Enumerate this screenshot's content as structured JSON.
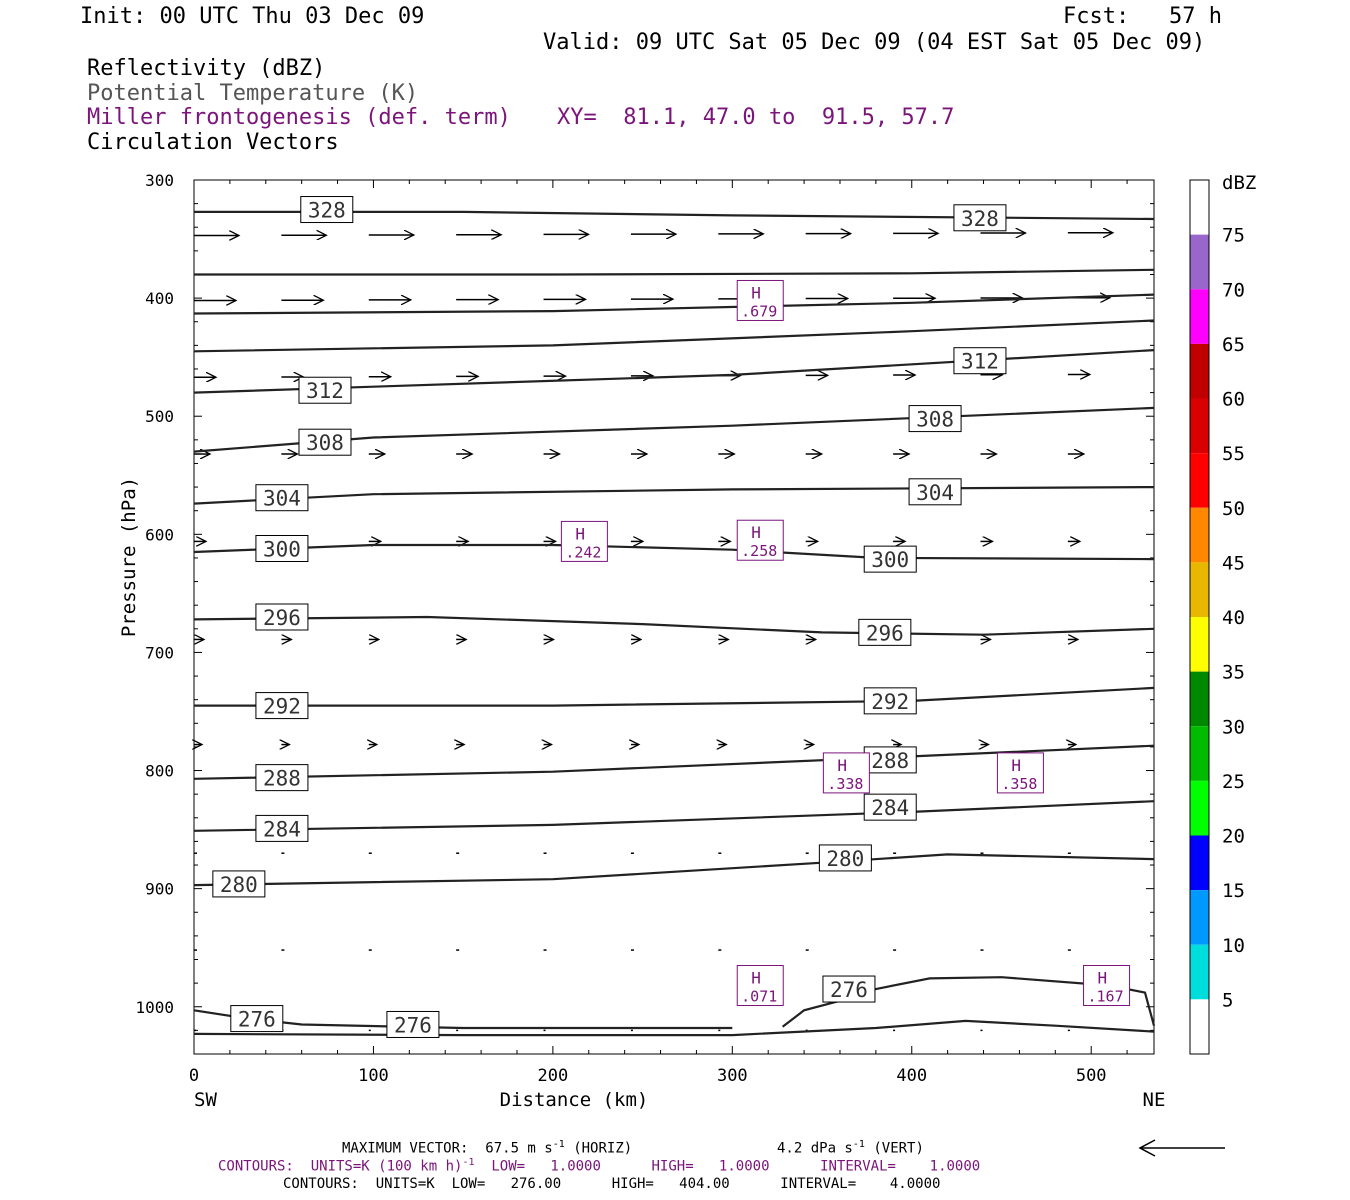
{
  "header": {
    "init": "Init: 00 UTC Thu 03 Dec 09",
    "fcst": "Fcst:   57 h",
    "valid": "Valid: 09 UTC Sat 05 Dec 09 (04 EST Sat 05 Dec 09)",
    "field1": "Reflectivity (dBZ)",
    "field2": "Potential Temperature (K)",
    "field3": "Miller frontogenesis (def. term)",
    "xy": "XY=  81.1, 47.0 to  91.5, 57.7",
    "field4": "Circulation Vectors"
  },
  "chart_data": {
    "type": "cross-section",
    "xlabel": "Distance (km)",
    "ylabel": "Pressure (hPa)",
    "xlim": [
      0,
      535
    ],
    "ylim": [
      1040,
      300
    ],
    "x_ticks": [
      "0",
      "100",
      "200",
      "300",
      "400",
      "500"
    ],
    "y_ticks": [
      "300",
      "400",
      "500",
      "600",
      "700",
      "800",
      "900",
      "1000"
    ],
    "x_end_labels": {
      "left": "SW",
      "right": "NE"
    },
    "colorbar": {
      "unit": "dBZ",
      "labels": [
        "75",
        "70",
        "65",
        "60",
        "55",
        "50",
        "45",
        "40",
        "35",
        "30",
        "25",
        "20",
        "15",
        "10",
        "5"
      ],
      "colors": [
        "#ffffff",
        "#9966cc",
        "#ff00ff",
        "#c00000",
        "#d80000",
        "#ff0000",
        "#ff8800",
        "#e8b800",
        "#ffff00",
        "#008800",
        "#00bb00",
        "#00ff00",
        "#0000ff",
        "#0099ff",
        "#00dddd",
        "#ffffff"
      ]
    },
    "theta_contours": [
      {
        "label": "328",
        "points": [
          [
            0,
            327
          ],
          [
            150,
            327
          ],
          [
            300,
            330
          ],
          [
            535,
            333
          ]
        ],
        "labels_at": [
          [
            74,
            325
          ],
          [
            438,
            332
          ]
        ]
      },
      {
        "label": "",
        "points": [
          [
            0,
            380
          ],
          [
            200,
            380
          ],
          [
            400,
            379
          ],
          [
            535,
            376
          ]
        ],
        "labels_at": []
      },
      {
        "label": "",
        "points": [
          [
            0,
            413
          ],
          [
            200,
            411
          ],
          [
            400,
            404
          ],
          [
            535,
            397
          ]
        ],
        "labels_at": []
      },
      {
        "label": "",
        "points": [
          [
            0,
            445
          ],
          [
            200,
            440
          ],
          [
            400,
            428
          ],
          [
            535,
            419
          ]
        ],
        "labels_at": []
      },
      {
        "label": "312",
        "points": [
          [
            0,
            480
          ],
          [
            100,
            475
          ],
          [
            300,
            465
          ],
          [
            535,
            444
          ]
        ],
        "labels_at": [
          [
            73,
            478
          ],
          [
            438,
            453
          ]
        ]
      },
      {
        "label": "308",
        "points": [
          [
            0,
            530
          ],
          [
            100,
            518
          ],
          [
            300,
            508
          ],
          [
            535,
            493
          ]
        ],
        "labels_at": [
          [
            73,
            522
          ],
          [
            413,
            502
          ]
        ]
      },
      {
        "label": "304",
        "points": [
          [
            0,
            574
          ],
          [
            100,
            566
          ],
          [
            300,
            562
          ],
          [
            535,
            560
          ]
        ],
        "labels_at": [
          [
            49,
            569
          ],
          [
            413,
            564
          ]
        ]
      },
      {
        "label": "300",
        "points": [
          [
            0,
            615
          ],
          [
            100,
            609
          ],
          [
            200,
            609
          ],
          [
            300,
            613
          ],
          [
            380,
            620
          ],
          [
            535,
            621
          ]
        ],
        "labels_at": [
          [
            49,
            612
          ],
          [
            388,
            621
          ]
        ]
      },
      {
        "label": "296",
        "points": [
          [
            0,
            672
          ],
          [
            130,
            670
          ],
          [
            250,
            676
          ],
          [
            350,
            683
          ],
          [
            440,
            685
          ],
          [
            535,
            680
          ]
        ],
        "labels_at": [
          [
            49,
            670
          ],
          [
            385,
            683
          ]
        ]
      },
      {
        "label": "292",
        "points": [
          [
            0,
            745
          ],
          [
            200,
            745
          ],
          [
            400,
            741
          ],
          [
            535,
            730
          ]
        ],
        "labels_at": [
          [
            49,
            745
          ],
          [
            388,
            741
          ]
        ]
      },
      {
        "label": "288",
        "points": [
          [
            0,
            807
          ],
          [
            200,
            801
          ],
          [
            400,
            788
          ],
          [
            535,
            779
          ]
        ],
        "labels_at": [
          [
            49,
            806
          ],
          [
            388,
            791
          ]
        ]
      },
      {
        "label": "284",
        "points": [
          [
            0,
            851
          ],
          [
            200,
            846
          ],
          [
            400,
            835
          ],
          [
            535,
            826
          ]
        ],
        "labels_at": [
          [
            49,
            849
          ],
          [
            388,
            831
          ]
        ]
      },
      {
        "label": "280",
        "points": [
          [
            0,
            897
          ],
          [
            200,
            892
          ],
          [
            350,
            878
          ],
          [
            420,
            871
          ],
          [
            535,
            875
          ]
        ],
        "labels_at": [
          [
            25,
            896
          ],
          [
            363,
            874
          ]
        ]
      },
      {
        "label": "276",
        "points": [
          [
            0,
            1003
          ],
          [
            30,
            1010
          ],
          [
            60,
            1015
          ],
          [
            150,
            1018
          ],
          [
            300,
            1018
          ]
        ],
        "labels_at": [
          [
            35,
            1010
          ],
          [
            122,
            1015
          ]
        ]
      },
      {
        "label": "276",
        "points": [
          [
            328,
            1017
          ],
          [
            340,
            1003
          ],
          [
            370,
            991
          ],
          [
            380,
            985
          ],
          [
            410,
            976
          ],
          [
            450,
            975
          ],
          [
            510,
            982
          ],
          [
            530,
            988
          ],
          [
            535,
            1016
          ]
        ],
        "labels_at": [
          [
            365,
            985
          ]
        ]
      },
      {
        "label": "",
        "points": [
          [
            0,
            1023
          ],
          [
            150,
            1024
          ],
          [
            300,
            1024
          ],
          [
            380,
            1018
          ],
          [
            430,
            1012
          ],
          [
            480,
            1016
          ],
          [
            535,
            1021
          ]
        ],
        "labels_at": []
      }
    ],
    "frontogenesis_maxima": [
      {
        "label": "H",
        "value": ".679",
        "x": 315,
        "p": 402
      },
      {
        "label": "H",
        "value": ".242",
        "x": 217,
        "p": 606
      },
      {
        "label": "H",
        "value": ".258",
        "x": 315,
        "p": 605
      },
      {
        "label": "H",
        "value": ".338",
        "x": 363,
        "p": 802
      },
      {
        "label": "H",
        "value": ".358",
        "x": 460,
        "p": 802
      },
      {
        "label": "H",
        "value": ".071",
        "x": 315,
        "p": 982
      },
      {
        "label": "H",
        "value": ".167",
        "x": 508,
        "p": 982
      }
    ],
    "vector_rows": [
      {
        "p": 347,
        "len": 45
      },
      {
        "p": 402,
        "len": 42
      },
      {
        "p": 467,
        "len": 22
      },
      {
        "p": 532,
        "len": 16
      },
      {
        "p": 606,
        "len": 12
      },
      {
        "p": 689,
        "len": 10
      },
      {
        "p": 778,
        "len": 8
      },
      {
        "p": 870,
        "len": 3
      },
      {
        "p": 952,
        "len": 3
      },
      {
        "p": 1020,
        "len": 2
      }
    ]
  },
  "footer": {
    "max_vector_label": "MAXIMUM VECTOR:  67.5 m s",
    "max_vector_horiz": "(HORIZ)",
    "max_vector_vert": "4.2 dPa s",
    "max_vector_vert_label": "(VERT)",
    "contours1_a": "CONTOURS:  UNITS=K (100 km h)",
    "contours1_b": "LOW=   1.0000      HIGH=   1.0000      INTERVAL=    1.0000",
    "contours2": "CONTOURS:  UNITS=K  LOW=   276.00      HIGH=   404.00      INTERVAL=    4.0000"
  }
}
